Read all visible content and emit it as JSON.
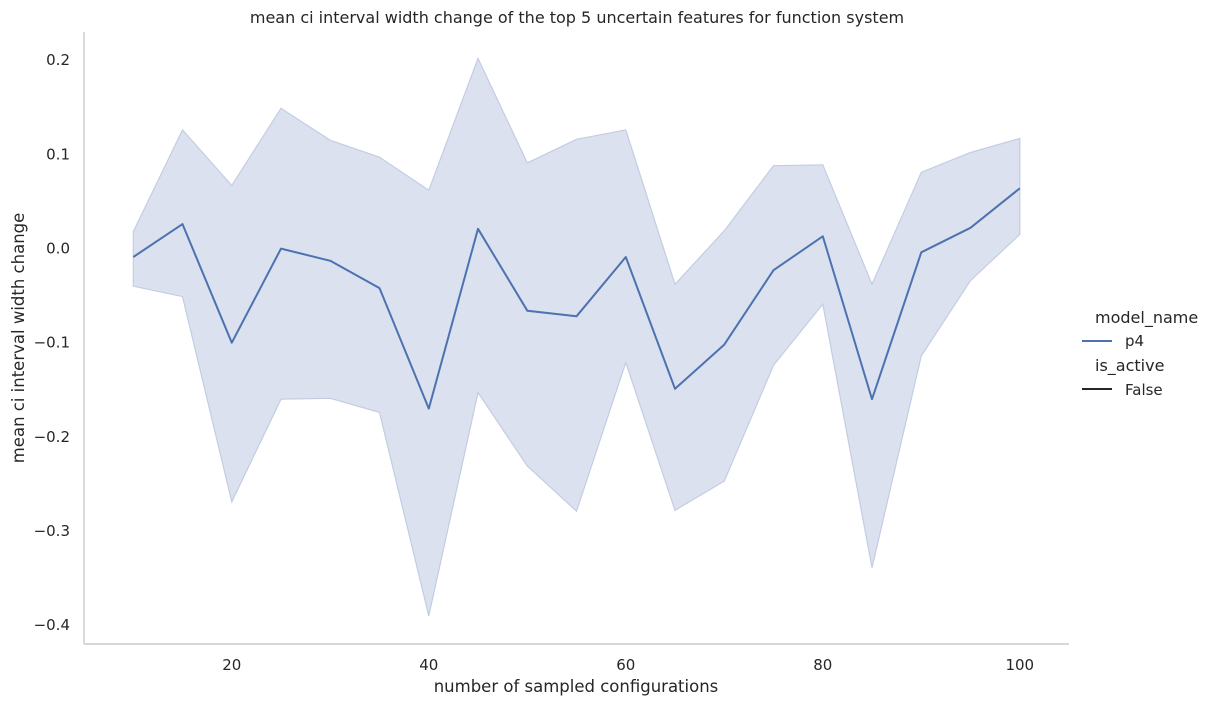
{
  "chart_data": {
    "type": "line",
    "title": "mean ci interval width change of the top 5 uncertain features for function system",
    "xlabel": "number of sampled configurations",
    "ylabel": "mean ci interval width change",
    "xlim": [
      5,
      105
    ],
    "ylim": [
      -0.42,
      0.23
    ],
    "x_ticks": [
      20,
      40,
      60,
      80,
      100
    ],
    "y_ticks": [
      -0.4,
      -0.3,
      -0.2,
      -0.1,
      0.0,
      0.1,
      0.2
    ],
    "x_tick_labels": [
      "20",
      "40",
      "60",
      "80",
      "100"
    ],
    "y_tick_labels": [
      "−0.4",
      "−0.3",
      "−0.2",
      "−0.1",
      "0.0",
      "0.1",
      "0.2"
    ],
    "grid": false,
    "legend_position": "right",
    "legend": {
      "hue_title": "model_name",
      "hue_entries": [
        {
          "label": "p4",
          "color": "#4c72b0"
        }
      ],
      "style_title": "is_active",
      "style_entries": [
        {
          "label": "False",
          "color": "#262626"
        }
      ]
    },
    "series": [
      {
        "name": "p4",
        "color": "#4c72b0",
        "band_color": "#dbe1ee",
        "x": [
          10,
          15,
          20,
          25,
          30,
          35,
          40,
          45,
          50,
          55,
          60,
          65,
          70,
          75,
          80,
          85,
          90,
          95,
          100
        ],
        "y": [
          -0.009,
          0.026,
          -0.1,
          0.0,
          -0.013,
          -0.042,
          -0.17,
          0.021,
          -0.066,
          -0.072,
          -0.009,
          -0.149,
          -0.102,
          -0.023,
          0.013,
          -0.16,
          -0.004,
          0.022,
          0.064
        ],
        "ci_upper": [
          0.018,
          0.126,
          0.067,
          0.149,
          0.115,
          0.097,
          0.062,
          0.202,
          0.091,
          0.116,
          0.126,
          -0.038,
          0.019,
          0.088,
          0.089,
          -0.038,
          0.081,
          0.102,
          0.117
        ],
        "ci_lower": [
          -0.04,
          -0.051,
          -0.269,
          -0.16,
          -0.159,
          -0.174,
          -0.39,
          -0.153,
          -0.231,
          -0.279,
          -0.121,
          -0.278,
          -0.247,
          -0.124,
          -0.059,
          -0.339,
          -0.114,
          -0.034,
          0.015
        ]
      }
    ]
  }
}
